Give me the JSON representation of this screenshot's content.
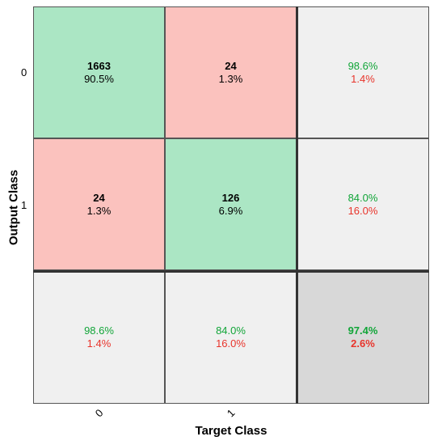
{
  "chart_data": {
    "type": "heatmap",
    "title": "",
    "xlabel": "Target Class",
    "ylabel": "Output Class",
    "x_tick_labels": [
      "0",
      "1"
    ],
    "y_tick_labels": [
      "0",
      "1"
    ],
    "cells": [
      [
        {
          "count": "1663",
          "percent": "90.5%"
        },
        {
          "count": "24",
          "percent": "1.3%"
        }
      ],
      [
        {
          "count": "24",
          "percent": "1.3%"
        },
        {
          "count": "126",
          "percent": "6.9%"
        }
      ]
    ],
    "row_summary": [
      {
        "correct": "98.6%",
        "incorrect": "1.4%"
      },
      {
        "correct": "84.0%",
        "incorrect": "16.0%"
      }
    ],
    "col_summary": [
      {
        "correct": "98.6%",
        "incorrect": "1.4%"
      },
      {
        "correct": "84.0%",
        "incorrect": "16.0%"
      }
    ],
    "overall": {
      "correct": "97.4%",
      "incorrect": "2.6%"
    },
    "colors": {
      "correct_cell": "#abe6c4",
      "incorrect_cell": "#fbc2be",
      "summary_cell": "#f0f0f0",
      "overall_cell": "#d8d8d8",
      "correct_text": "#11a538",
      "incorrect_text": "#e8342b"
    }
  }
}
